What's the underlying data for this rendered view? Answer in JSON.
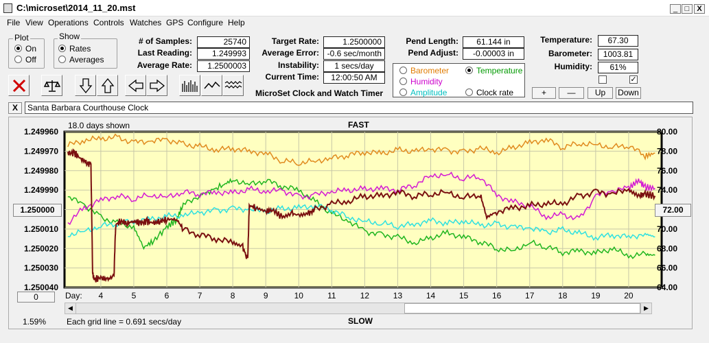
{
  "window": {
    "title": "C:\\microset\\2014_11_20.mst",
    "min_glyph": "_",
    "max_glyph": "□",
    "close_glyph": "X"
  },
  "menu": [
    "File",
    "View",
    "Operations",
    "Controls",
    "Watches",
    "GPS",
    "Configure",
    "Help"
  ],
  "plot_group": {
    "title": "Plot",
    "options": [
      "On",
      "Off"
    ],
    "selected": 0
  },
  "show_group": {
    "title": "Show",
    "options": [
      "Rates",
      "Averages"
    ],
    "selected": 0
  },
  "stats": {
    "samples_label": "# of Samples:",
    "samples": "25740",
    "last_label": "Last Reading:",
    "last": "1.249993",
    "avg_label": "Average Rate:",
    "avg": "1.2500003"
  },
  "rate": {
    "target_label": "Target Rate:",
    "target": "1.2500000",
    "error_label": "Average Error:",
    "error": "-0.6 sec/month",
    "instab_label": "Instability:",
    "instab": "1 secs/day",
    "time_label": "Current Time:",
    "time": "12:00:50 AM"
  },
  "app_name": "MicroSet Clock and Watch Timer",
  "pend": {
    "len_label": "Pend Length:",
    "len": "61.144 in",
    "adj_label": "Pend Adjust:",
    "adj": "-0.00003 in"
  },
  "sensor_options": [
    {
      "label": "Barometer",
      "color": "#e07b00",
      "selected": false
    },
    {
      "label": "Temperature",
      "color": "#009900",
      "selected": true
    },
    {
      "label": "Humidity",
      "color": "#cc00cc",
      "selected": false
    },
    {
      "label": "Clock rate",
      "color": "#000000",
      "selected": false
    },
    {
      "label": "Amplitude",
      "color": "#00bfbf",
      "selected": false
    }
  ],
  "env": {
    "temp_label": "Temperature:",
    "temp": "67.30",
    "baro_label": "Barometer:",
    "baro": "1003.81",
    "hum_label": "Humidity:",
    "hum": "61%",
    "check_glyph": "✓"
  },
  "env_buttons": [
    "+",
    "—",
    "Up",
    "Down"
  ],
  "toolbar": [
    "close-x-icon",
    "balance-scale-icon",
    "arrow-down-icon",
    "arrow-up-icon",
    "arrow-left-icon",
    "arrow-right-icon",
    "bar-graph-icon",
    "line-graph-icon",
    "noise-graph-icon"
  ],
  "note": {
    "clear_label": "X",
    "text": "Santa Barbara Courthouse Clock"
  },
  "chart_panel": {
    "days_shown": "18.0 days shown",
    "fast_label": "FAST",
    "slow_label": "SLOW",
    "grid_note": "Each grid line = 0.691 secs/day",
    "percent": "1.59%",
    "left_button": "1.250000",
    "right_button": "72.00",
    "zero_button": "0",
    "day_label": "Day:"
  },
  "chart_data": {
    "type": "line",
    "x_ticks": [
      4,
      5,
      6,
      7,
      8,
      9,
      10,
      11,
      12,
      13,
      14,
      15,
      16,
      17,
      18,
      19,
      20
    ],
    "xlim": [
      2.9,
      21.0
    ],
    "left_axis": {
      "ticks": [
        "1.249960",
        "1.249970",
        "1.249980",
        "1.249990",
        "1.250000",
        "1.250010",
        "1.250020",
        "1.250030",
        "1.250040"
      ],
      "ylim": [
        1.24996,
        1.25004
      ]
    },
    "right_axis": {
      "ticks": [
        "80.00",
        "78.00",
        "76.00",
        "74.00",
        "72.00",
        "70.00",
        "68.00",
        "66.00",
        "64.00"
      ],
      "ylim": [
        80,
        64
      ]
    },
    "grid": true,
    "series": [
      {
        "color": "#e08a1e",
        "axis": "right",
        "points": [
          [
            3.0,
            78.6
          ],
          [
            3.5,
            79.1
          ],
          [
            4.0,
            79.3
          ],
          [
            4.5,
            79.4
          ],
          [
            5.0,
            78.9
          ],
          [
            5.5,
            79.0
          ],
          [
            6.0,
            79.2
          ],
          [
            6.5,
            78.7
          ],
          [
            7.0,
            78.5
          ],
          [
            7.5,
            78.1
          ],
          [
            8.0,
            78.3
          ],
          [
            8.5,
            78.0
          ],
          [
            9.0,
            77.8
          ],
          [
            9.5,
            77.0
          ],
          [
            10.0,
            76.8
          ],
          [
            10.5,
            77.0
          ],
          [
            11.0,
            77.3
          ],
          [
            11.5,
            77.6
          ],
          [
            12.0,
            77.9
          ],
          [
            12.5,
            77.8
          ],
          [
            13.0,
            78.1
          ],
          [
            13.5,
            78.0
          ],
          [
            14.0,
            78.2
          ],
          [
            14.5,
            78.1
          ],
          [
            15.0,
            77.9
          ],
          [
            15.5,
            78.3
          ],
          [
            16.0,
            77.8
          ],
          [
            16.5,
            78.4
          ],
          [
            17.0,
            78.9
          ],
          [
            17.5,
            79.2
          ],
          [
            18.0,
            78.4
          ],
          [
            18.5,
            78.8
          ],
          [
            19.0,
            78.7
          ],
          [
            19.5,
            78.4
          ],
          [
            20.0,
            78.6
          ],
          [
            20.5,
            77.5
          ],
          [
            20.8,
            77.8
          ]
        ]
      },
      {
        "color": "#1fb51f",
        "axis": "right",
        "points": [
          [
            3.0,
            73.3
          ],
          [
            3.5,
            72.5
          ],
          [
            4.0,
            71.2
          ],
          [
            4.5,
            70.6
          ],
          [
            5.0,
            70.2
          ],
          [
            5.3,
            68.1
          ],
          [
            5.6,
            68.8
          ],
          [
            6.0,
            70.2
          ],
          [
            6.3,
            71.0
          ],
          [
            6.5,
            72.5
          ],
          [
            7.0,
            73.5
          ],
          [
            7.3,
            73.9
          ],
          [
            7.7,
            74.5
          ],
          [
            8.0,
            75.1
          ],
          [
            8.5,
            74.6
          ],
          [
            9.0,
            75.0
          ],
          [
            9.5,
            74.4
          ],
          [
            10.0,
            74.0
          ],
          [
            10.5,
            72.8
          ],
          [
            11.0,
            71.6
          ],
          [
            11.5,
            70.8
          ],
          [
            12.0,
            69.8
          ],
          [
            12.5,
            69.4
          ],
          [
            13.0,
            69.2
          ],
          [
            13.5,
            68.5
          ],
          [
            14.0,
            69.1
          ],
          [
            14.5,
            69.6
          ],
          [
            15.0,
            69.2
          ],
          [
            15.5,
            68.7
          ],
          [
            16.0,
            68.0
          ],
          [
            16.5,
            67.8
          ],
          [
            17.0,
            68.6
          ],
          [
            17.5,
            68.2
          ],
          [
            18.0,
            67.6
          ],
          [
            18.5,
            67.8
          ],
          [
            19.0,
            67.5
          ],
          [
            19.5,
            68.0
          ],
          [
            20.0,
            67.2
          ],
          [
            20.5,
            67.4
          ],
          [
            20.8,
            67.3
          ]
        ]
      },
      {
        "color": "#d319d3",
        "axis": "right",
        "points": [
          [
            3.0,
            70.6
          ],
          [
            3.5,
            72.2
          ],
          [
            4.0,
            73.0
          ],
          [
            4.5,
            73.4
          ],
          [
            5.0,
            73.1
          ],
          [
            5.5,
            73.5
          ],
          [
            6.0,
            73.3
          ],
          [
            6.5,
            73.8
          ],
          [
            7.0,
            73.6
          ],
          [
            7.5,
            73.8
          ],
          [
            8.0,
            73.7
          ],
          [
            8.5,
            74.1
          ],
          [
            9.0,
            73.8
          ],
          [
            9.5,
            74.0
          ],
          [
            10.0,
            73.3
          ],
          [
            10.5,
            73.5
          ],
          [
            11.0,
            73.8
          ],
          [
            11.5,
            74.0
          ],
          [
            12.0,
            74.1
          ],
          [
            12.5,
            74.2
          ],
          [
            13.0,
            74.0
          ],
          [
            13.5,
            74.5
          ],
          [
            14.0,
            75.5
          ],
          [
            14.5,
            75.6
          ],
          [
            15.0,
            75.2
          ],
          [
            15.5,
            75.4
          ],
          [
            16.0,
            73.5
          ],
          [
            16.5,
            72.8
          ],
          [
            17.0,
            72.4
          ],
          [
            17.5,
            71.2
          ],
          [
            18.0,
            71.5
          ],
          [
            18.5,
            71.0
          ],
          [
            19.0,
            73.4
          ],
          [
            19.5,
            73.9
          ],
          [
            20.0,
            74.2
          ],
          [
            20.3,
            75.0
          ],
          [
            20.5,
            74.3
          ],
          [
            20.8,
            74.2
          ]
        ]
      },
      {
        "color": "#2ee0e0",
        "axis": "right",
        "points": [
          [
            3.0,
            69.4
          ],
          [
            3.5,
            69.8
          ],
          [
            4.0,
            70.3
          ],
          [
            4.5,
            70.6
          ],
          [
            5.0,
            70.8
          ],
          [
            5.5,
            71.0
          ],
          [
            6.0,
            71.3
          ],
          [
            6.5,
            71.4
          ],
          [
            7.0,
            71.7
          ],
          [
            7.5,
            71.9
          ],
          [
            8.0,
            72.1
          ],
          [
            8.5,
            72.0
          ],
          [
            9.0,
            71.8
          ],
          [
            9.5,
            72.1
          ],
          [
            10.0,
            72.2
          ],
          [
            10.5,
            72.4
          ],
          [
            11.0,
            72.0
          ],
          [
            11.5,
            71.2
          ],
          [
            12.0,
            70.8
          ],
          [
            12.5,
            70.6
          ],
          [
            13.0,
            70.3
          ],
          [
            13.5,
            70.5
          ],
          [
            14.0,
            70.9
          ],
          [
            14.5,
            70.6
          ],
          [
            15.0,
            70.8
          ],
          [
            15.5,
            70.4
          ],
          [
            16.0,
            70.5
          ],
          [
            16.5,
            70.2
          ],
          [
            17.0,
            70.1
          ],
          [
            17.5,
            69.7
          ],
          [
            18.0,
            69.9
          ],
          [
            18.5,
            69.6
          ],
          [
            19.0,
            69.1
          ],
          [
            19.5,
            69.4
          ],
          [
            20.0,
            69.2
          ],
          [
            20.5,
            69.5
          ],
          [
            20.8,
            69.2
          ]
        ]
      },
      {
        "color": "#7a1010",
        "axis": "left",
        "points": [
          [
            3.0,
            1.249971
          ],
          [
            3.2,
            1.249971
          ],
          [
            3.4,
            1.249974
          ],
          [
            3.6,
            1.249976
          ],
          [
            3.7,
            1.249977
          ],
          [
            3.75,
            1.250032
          ],
          [
            3.8,
            1.250036
          ],
          [
            4.0,
            1.250035
          ],
          [
            4.2,
            1.250036
          ],
          [
            4.4,
            1.250034
          ],
          [
            4.45,
            1.250008
          ],
          [
            4.6,
            1.250006
          ],
          [
            4.8,
            1.250007
          ],
          [
            5.0,
            1.250006
          ],
          [
            5.2,
            1.250007
          ],
          [
            5.4,
            1.250006
          ],
          [
            5.6,
            1.250007
          ],
          [
            5.8,
            1.250006
          ],
          [
            6.0,
            1.250005
          ],
          [
            6.3,
            1.250005
          ],
          [
            6.5,
            1.25001
          ],
          [
            7.0,
            1.250013
          ],
          [
            7.5,
            1.250015
          ],
          [
            8.0,
            1.250017
          ],
          [
            8.3,
            1.250019
          ],
          [
            8.45,
            1.250026
          ],
          [
            8.5,
            1.249998
          ],
          [
            8.7,
            1.249999
          ],
          [
            9.0,
            1.250001
          ],
          [
            9.2,
            1.25
          ],
          [
            9.5,
            1.250004
          ],
          [
            9.8,
            1.250002
          ],
          [
            10.0,
            1.250003
          ],
          [
            10.3,
            1.250002
          ],
          [
            10.5,
            1.25
          ],
          [
            11.0,
            1.249997
          ],
          [
            11.5,
            1.249996
          ],
          [
            12.0,
            1.249993
          ],
          [
            12.5,
            1.249993
          ],
          [
            13.0,
            1.249991
          ],
          [
            13.5,
            1.249993
          ],
          [
            14.0,
            1.249992
          ],
          [
            14.5,
            1.249991
          ],
          [
            15.0,
            1.249994
          ],
          [
            15.5,
            1.249992
          ],
          [
            15.7,
            1.250004
          ],
          [
            16.0,
            1.250001
          ],
          [
            16.5,
            1.249999
          ],
          [
            17.0,
            1.249998
          ],
          [
            17.5,
            1.249997
          ],
          [
            18.0,
            1.249997
          ],
          [
            18.5,
            1.249993
          ],
          [
            19.0,
            1.249991
          ],
          [
            19.5,
            1.249992
          ],
          [
            20.0,
            1.24999
          ],
          [
            20.3,
            1.249993
          ],
          [
            20.5,
            1.249992
          ],
          [
            20.8,
            1.249993
          ]
        ]
      }
    ]
  }
}
